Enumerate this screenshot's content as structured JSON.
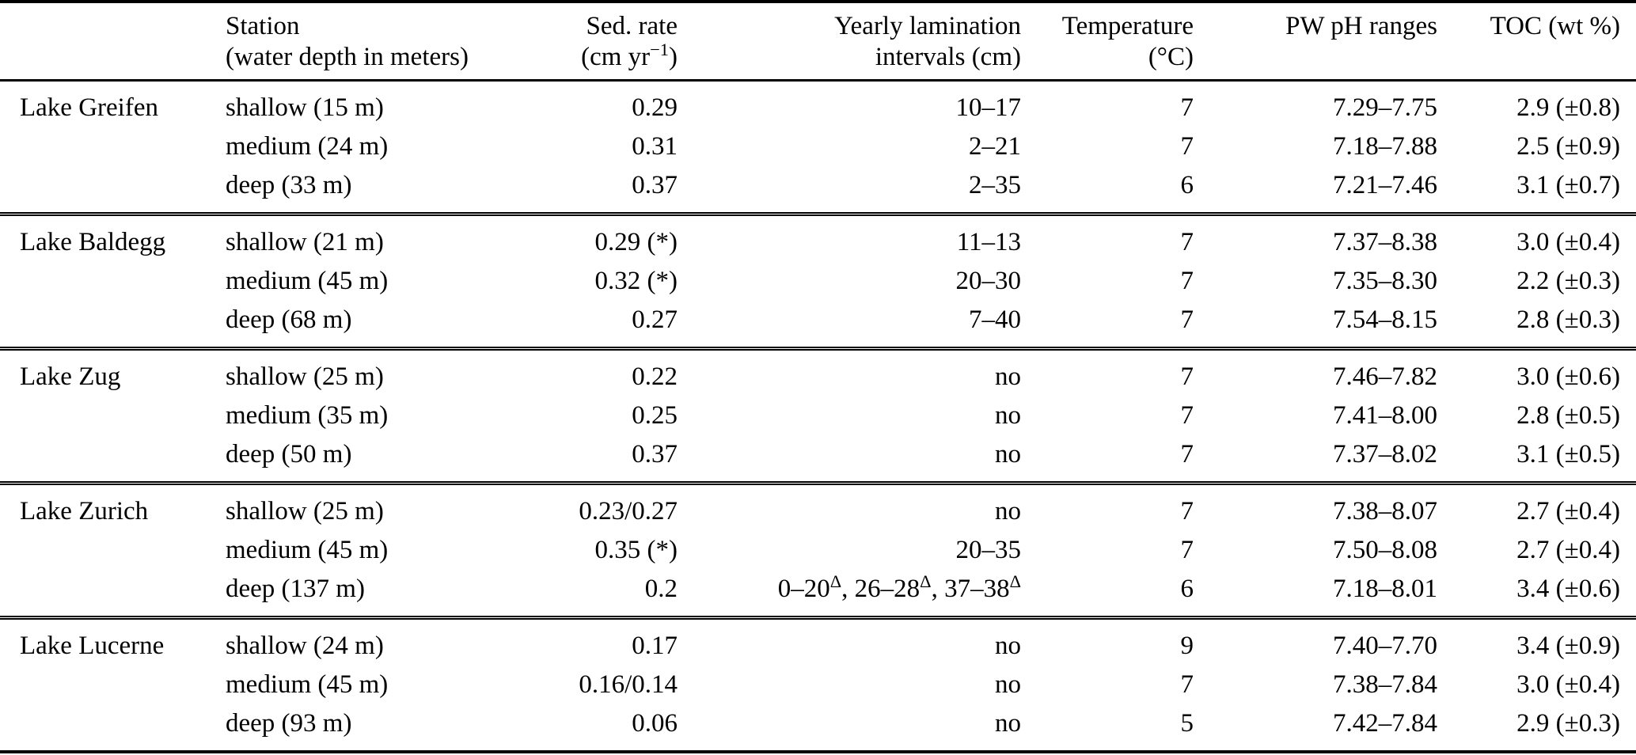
{
  "table": {
    "columns": [
      {
        "id": "lake",
        "label_line1": "",
        "label_line2": ""
      },
      {
        "id": "station",
        "label_line1": "Station",
        "label_line2": "(water depth in meters)"
      },
      {
        "id": "sed_rate",
        "label_line1": "Sed. rate",
        "label_line2": "(cm yr^{−1})"
      },
      {
        "id": "lamination",
        "label_line1": "Yearly lamination",
        "label_line2": "intervals (cm)"
      },
      {
        "id": "temperature",
        "label_line1": "Temperature",
        "label_line2": "(°C)"
      },
      {
        "id": "ph",
        "label_line1": "PW pH ranges",
        "label_line2": ""
      },
      {
        "id": "toc",
        "label_line1": "TOC (wt %)",
        "label_line2": ""
      }
    ],
    "groups": [
      {
        "lake": "Lake Greifen",
        "rows": [
          {
            "station": "shallow (15 m)",
            "sed_rate": "0.29",
            "lamination": "10–17",
            "temperature": "7",
            "ph": "7.29–7.75",
            "toc": "2.9 (±0.8)"
          },
          {
            "station": "medium (24 m)",
            "sed_rate": "0.31",
            "lamination": "2–21",
            "temperature": "7",
            "ph": "7.18–7.88",
            "toc": "2.5 (±0.9)"
          },
          {
            "station": "deep (33 m)",
            "sed_rate": "0.37",
            "lamination": "2–35",
            "temperature": "6",
            "ph": "7.21–7.46",
            "toc": "3.1 (±0.7)"
          }
        ]
      },
      {
        "lake": "Lake Baldegg",
        "rows": [
          {
            "station": "shallow (21 m)",
            "sed_rate": "0.29 (*)",
            "lamination": "11–13",
            "temperature": "7",
            "ph": "7.37–8.38",
            "toc": "3.0 (±0.4)"
          },
          {
            "station": "medium (45 m)",
            "sed_rate": "0.32 (*)",
            "lamination": "20–30",
            "temperature": "7",
            "ph": "7.35–8.30",
            "toc": "2.2 (±0.3)"
          },
          {
            "station": "deep (68 m)",
            "sed_rate": "0.27",
            "lamination": "7–40",
            "temperature": "7",
            "ph": "7.54–8.15",
            "toc": "2.8 (±0.3)"
          }
        ]
      },
      {
        "lake": "Lake Zug",
        "rows": [
          {
            "station": "shallow (25 m)",
            "sed_rate": "0.22",
            "lamination": "no",
            "temperature": "7",
            "ph": "7.46–7.82",
            "toc": "3.0 (±0.6)"
          },
          {
            "station": "medium (35 m)",
            "sed_rate": "0.25",
            "lamination": "no",
            "temperature": "7",
            "ph": "7.41–8.00",
            "toc": "2.8 (±0.5)"
          },
          {
            "station": "deep (50 m)",
            "sed_rate": "0.37",
            "lamination": "no",
            "temperature": "7",
            "ph": "7.37–8.02",
            "toc": "3.1 (±0.5)"
          }
        ]
      },
      {
        "lake": "Lake Zurich",
        "rows": [
          {
            "station": "shallow (25 m)",
            "sed_rate": "0.23/0.27",
            "lamination": "no",
            "temperature": "7",
            "ph": "7.38–8.07",
            "toc": "2.7 (±0.4)"
          },
          {
            "station": "medium (45 m)",
            "sed_rate": "0.35 (*)",
            "lamination": "20–35",
            "temperature": "7",
            "ph": "7.50–8.08",
            "toc": "2.7 (±0.4)"
          },
          {
            "station": "deep (137 m)",
            "sed_rate": "0.2",
            "lamination": "0–20^{Δ}, 26–28^{Δ}, 37–38^{Δ}",
            "temperature": "6",
            "ph": "7.18–8.01",
            "toc": "3.4 (±0.6)"
          }
        ]
      },
      {
        "lake": "Lake Lucerne",
        "rows": [
          {
            "station": "shallow (24 m)",
            "sed_rate": "0.17",
            "lamination": "no",
            "temperature": "9",
            "ph": "7.40–7.70",
            "toc": "3.4 (±0.9)"
          },
          {
            "station": "medium (45 m)",
            "sed_rate": "0.16/0.14",
            "lamination": "no",
            "temperature": "7",
            "ph": "7.38–7.84",
            "toc": "3.0 (±0.4)"
          },
          {
            "station": "deep (93 m)",
            "sed_rate": "0.06",
            "lamination": "no",
            "temperature": "5",
            "ph": "7.42–7.84",
            "toc": "2.9 (±0.3)"
          }
        ]
      }
    ]
  }
}
